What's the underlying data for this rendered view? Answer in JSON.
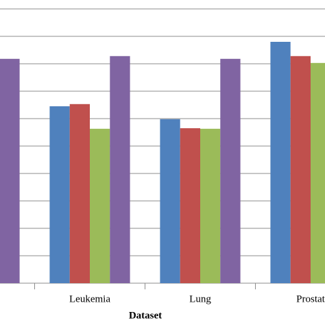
{
  "chart_data": {
    "type": "bar",
    "x_label": "Dataset",
    "categories": [
      null,
      "Leukemia",
      "Lung",
      "Prostat"
    ],
    "series": [
      {
        "color": "#4f81bd",
        "values": [
          null,
          6.45,
          5.98,
          8.8
        ]
      },
      {
        "color": "#c0504d",
        "values": [
          null,
          6.53,
          5.65,
          8.28
        ]
      },
      {
        "color": "#9bbb59",
        "values": [
          null,
          5.63,
          5.63,
          8.03
        ]
      },
      {
        "color": "#8064a2",
        "values": [
          8.18,
          8.28,
          8.18,
          null
        ]
      }
    ],
    "ylim": [
      0,
      10
    ],
    "yticks": [
      0,
      1,
      2,
      3,
      4,
      5,
      6,
      7,
      8,
      9,
      10
    ],
    "grid": true
  }
}
